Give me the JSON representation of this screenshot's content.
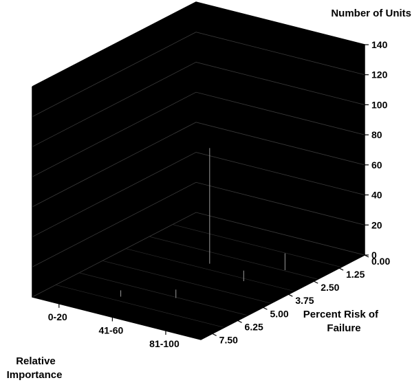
{
  "chart_data": {
    "type": "bar",
    "subtype": "3d-column",
    "background_color": "#000000",
    "gridlines": true,
    "legend": "none",
    "z_axis": {
      "title": "Number of Units",
      "range": [
        0,
        140
      ],
      "ticks": [
        "0",
        "20",
        "40",
        "60",
        "80",
        "100",
        "120",
        "140"
      ]
    },
    "depth_axis": {
      "title_line1": "Percent Risk of",
      "title_line2": "Failure",
      "ticks": [
        "0.00",
        "1.25",
        "2.50",
        "3.75",
        "5.00",
        "6.25",
        "7.50"
      ]
    },
    "x_axis": {
      "title_line1": "Relative",
      "title_line2": "Importance",
      "ticks": [
        "0-20",
        "41-60",
        "81-100"
      ]
    }
  }
}
